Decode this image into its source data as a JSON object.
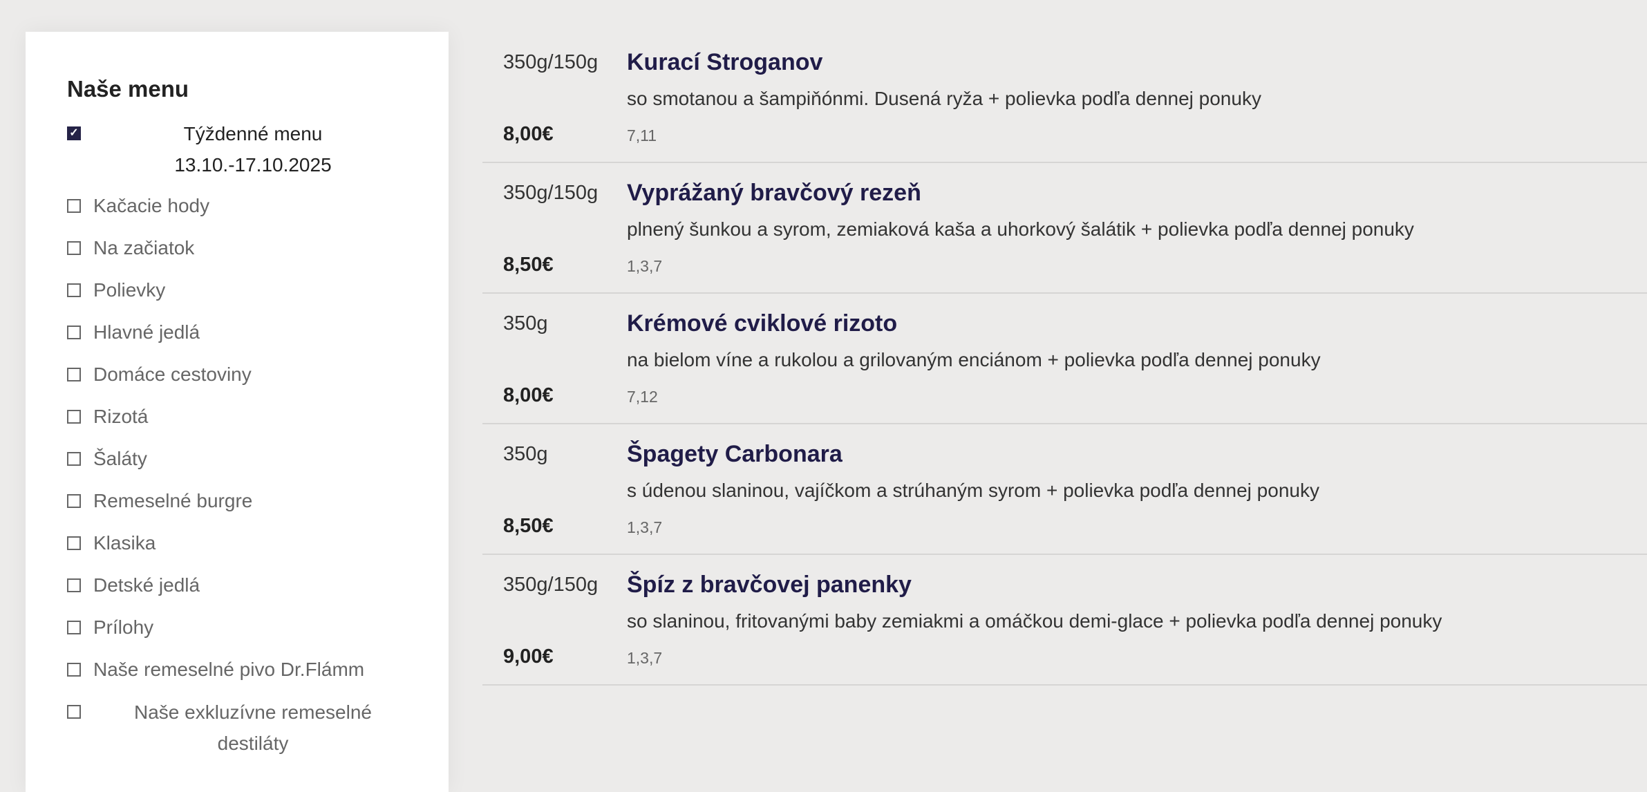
{
  "sidebar": {
    "title": "Naše menu",
    "categories": [
      {
        "label": "Týždenné menu 13.10.-17.10.2025",
        "line1": "Týždenné menu",
        "line2": "13.10.-17.10.2025",
        "checked": true
      },
      {
        "label": "Kačacie hody",
        "checked": false
      },
      {
        "label": "Na začiatok",
        "checked": false
      },
      {
        "label": "Polievky",
        "checked": false
      },
      {
        "label": "Hlavné jedlá",
        "checked": false
      },
      {
        "label": "Domáce cestoviny",
        "checked": false
      },
      {
        "label": "Rizotá",
        "checked": false
      },
      {
        "label": "Šaláty",
        "checked": false
      },
      {
        "label": "Remeselné burgre",
        "checked": false
      },
      {
        "label": "Klasika",
        "checked": false
      },
      {
        "label": "Detské jedlá",
        "checked": false
      },
      {
        "label": "Prílohy",
        "checked": false
      },
      {
        "label": "Naše remeselné pivo Dr.Flámm",
        "checked": false
      },
      {
        "label": "Naše exkluzívne remeselné destiláty",
        "line1": "Naše exkluzívne remeselné",
        "line2": "destiláty",
        "checked": false
      }
    ]
  },
  "menu_items": [
    {
      "weight": "350g/150g",
      "name": "Kurací Stroganov",
      "description": "so smotanou a šampiňónmi. Dusená ryža + polievka podľa dennej ponuky",
      "price": "8,00€",
      "allergens": "7,11"
    },
    {
      "weight": "350g/150g",
      "name": "Vyprážaný bravčový rezeň",
      "description": "plnený šunkou a syrom, zemiaková kaša a uhorkový šalátik + polievka podľa dennej ponuky",
      "price": "8,50€",
      "allergens": "1,3,7"
    },
    {
      "weight": "350g",
      "name": "Krémové cviklové rizoto",
      "description": "na bielom víne a rukolou a grilovaným enciánom + polievka podľa dennej ponuky",
      "price": "8,00€",
      "allergens": "7,12"
    },
    {
      "weight": "350g",
      "name": "Špagety Carbonara",
      "description": "s údenou slaninou, vajíčkom a strúhaným syrom + polievka podľa dennej ponuky",
      "price": "8,50€",
      "allergens": "1,3,7"
    },
    {
      "weight": "350g/150g",
      "name": "Špíz z bravčovej panenky",
      "description": "so slaninou, fritovanými baby zemiakmi a omáčkou demi-glace + polievka podľa dennej ponuky",
      "price": "9,00€",
      "allergens": "1,3,7"
    }
  ],
  "colors": {
    "accent": "#201c48",
    "background": "#ecebea"
  }
}
